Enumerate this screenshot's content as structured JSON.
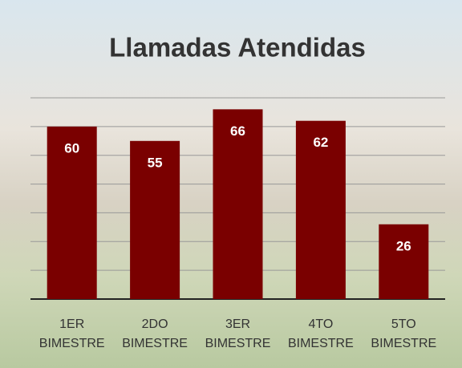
{
  "chart_data": {
    "type": "bar",
    "title": "Llamadas Atendidas",
    "categories": [
      "1ER BIMESTRE",
      "2DO BIMESTRE",
      "3ER BIMESTRE",
      "4TO BIMESTRE",
      "5TO BIMESTRE"
    ],
    "values": [
      60,
      55,
      66,
      62,
      26
    ],
    "color": "#7a0000",
    "ylim": [
      0,
      70
    ],
    "yticks": [
      0,
      10,
      20,
      30,
      40,
      50,
      60,
      70
    ],
    "grid": true
  }
}
